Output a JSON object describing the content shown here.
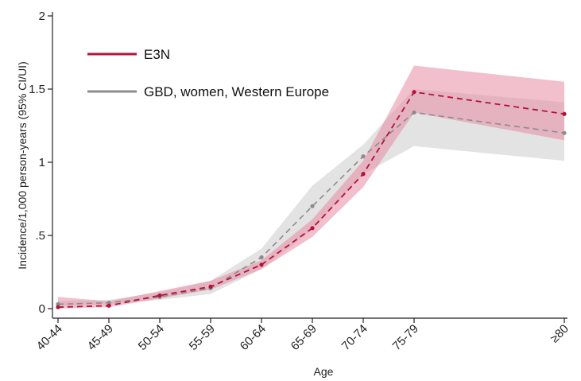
{
  "chart_data": {
    "type": "line",
    "xlabel": "Age",
    "ylabel": "Incidence/1,000 person-years (95% CI/UI)",
    "categories": [
      "40-44",
      "45-49",
      "50-54",
      "55-59",
      "60-64",
      "65-69",
      "70-74",
      "75-79",
      "≥80"
    ],
    "y_ticks": [
      "0",
      ".5",
      "1",
      "1.5",
      "2"
    ],
    "ylim": [
      0,
      2
    ],
    "grid": false,
    "legend_position": "top-left",
    "series": [
      {
        "name": "E3N",
        "color": "#b5123a",
        "band_color": "#e88aa3",
        "values": [
          0.01,
          0.02,
          0.09,
          0.15,
          0.3,
          0.55,
          0.92,
          1.48,
          1.33
        ],
        "lower": [
          0.0,
          0.01,
          0.07,
          0.13,
          0.27,
          0.49,
          0.83,
          1.34,
          1.15
        ],
        "upper": [
          0.08,
          0.05,
          0.12,
          0.19,
          0.33,
          0.61,
          1.01,
          1.66,
          1.55
        ]
      },
      {
        "name": "GBD, women, Western Europe",
        "color": "#8c8c8c",
        "band_color": "#d9d9d9",
        "values": [
          0.03,
          0.04,
          0.08,
          0.14,
          0.35,
          0.7,
          1.04,
          1.34,
          1.2
        ],
        "lower": [
          0.02,
          0.03,
          0.06,
          0.1,
          0.27,
          0.54,
          0.92,
          1.11,
          1.01
        ],
        "upper": [
          0.05,
          0.06,
          0.11,
          0.19,
          0.41,
          0.84,
          1.12,
          1.5,
          1.41
        ]
      }
    ]
  }
}
